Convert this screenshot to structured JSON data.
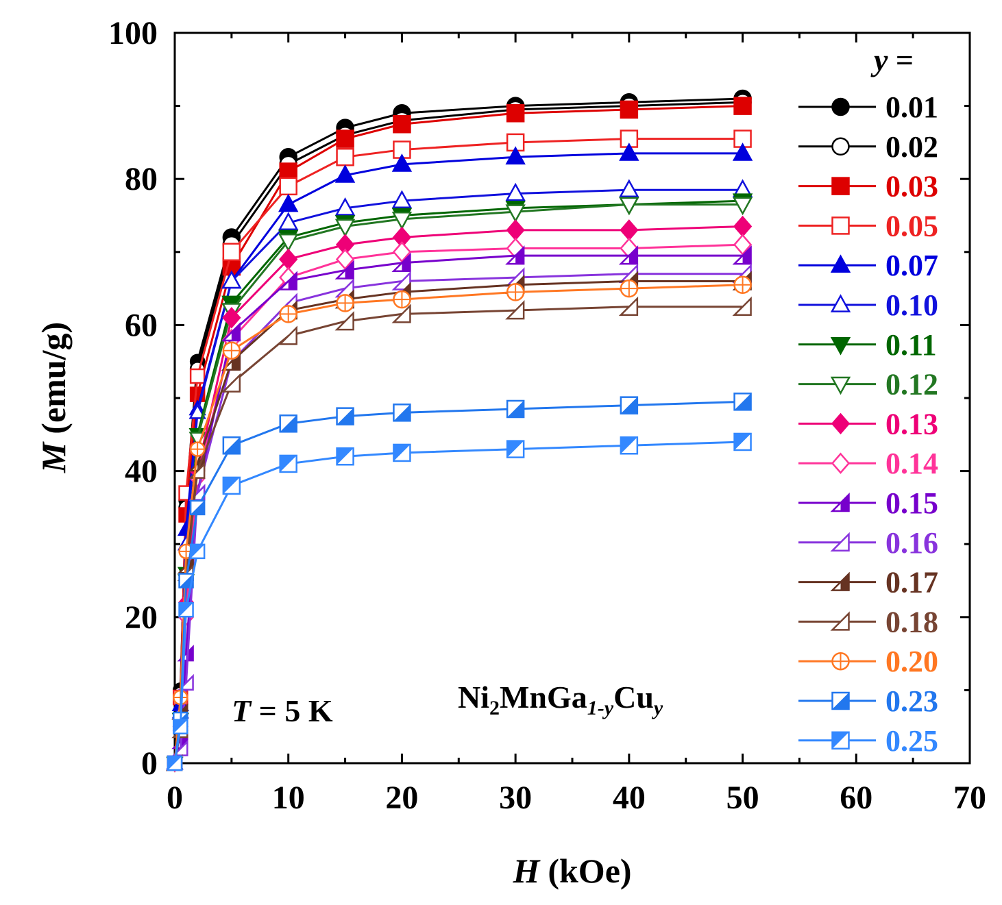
{
  "chart_data": {
    "type": "line",
    "title": "",
    "xlabel": {
      "symbol": "H",
      "unit": "(kOe)"
    },
    "ylabel": {
      "symbol": "M",
      "unit": "(emu/g)"
    },
    "xlim": [
      0,
      70
    ],
    "ylim": [
      0,
      100
    ],
    "xticks": [
      "0",
      "10",
      "20",
      "30",
      "40",
      "50",
      "60",
      "70"
    ],
    "yticks": [
      "0",
      "20",
      "40",
      "60",
      "80",
      "100"
    ],
    "grid": false,
    "legend_title": {
      "symbol": "y",
      "suffix": " ="
    },
    "legend_position": "right",
    "annotation_temperature": {
      "symbol": "T",
      "text": " = 5 K"
    },
    "annotation_formula": {
      "a": "Ni",
      "a_sub": "2",
      "b": "MnGa",
      "b_sub": "1-y",
      "c": "Cu",
      "c_sub": "y"
    },
    "x": [
      0,
      0.5,
      1,
      2,
      5,
      10,
      15,
      20,
      30,
      40,
      50
    ],
    "series": [
      {
        "name": "0.01",
        "color": "#000000",
        "marker": "circle",
        "fill": "full",
        "values": [
          0,
          10,
          36,
          55,
          72,
          83,
          87,
          89,
          90,
          90.5,
          91
        ]
      },
      {
        "name": "0.02",
        "color": "#000000",
        "marker": "circle",
        "fill": "none",
        "values": [
          0,
          9.5,
          35,
          54,
          71,
          82,
          86,
          88,
          89.5,
          90,
          90.5
        ]
      },
      {
        "name": "0.03",
        "color": "#dd0000",
        "marker": "square",
        "fill": "full",
        "values": [
          0,
          9,
          34,
          50.5,
          68,
          81,
          85.5,
          87.5,
          89,
          89.5,
          90
        ]
      },
      {
        "name": "0.05",
        "color": "#ee2222",
        "marker": "square",
        "fill": "none",
        "values": [
          0,
          9,
          37,
          53,
          70,
          79,
          83,
          84,
          85,
          85.5,
          85.5
        ]
      },
      {
        "name": "0.07",
        "color": "#0000dd",
        "marker": "triangle-up",
        "fill": "full",
        "values": [
          0,
          8,
          32,
          48.5,
          66,
          76.5,
          80.5,
          82,
          83,
          83.5,
          83.5
        ]
      },
      {
        "name": "0.10",
        "color": "#1111dd",
        "marker": "triangle-up",
        "fill": "none",
        "values": [
          0,
          7,
          30,
          48,
          66,
          74,
          76,
          77,
          78,
          78.5,
          78.5
        ]
      },
      {
        "name": "0.11",
        "color": "#006600",
        "marker": "triangle-down",
        "fill": "full",
        "values": [
          0,
          6,
          26,
          45,
          63,
          72,
          74,
          75,
          76,
          76.5,
          77
        ]
      },
      {
        "name": "0.12",
        "color": "#227722",
        "marker": "triangle-down",
        "fill": "none",
        "values": [
          0,
          6,
          25,
          44.5,
          62,
          71.5,
          73.5,
          74.5,
          75.5,
          76.5,
          76.5
        ]
      },
      {
        "name": "0.13",
        "color": "#ee0077",
        "marker": "diamond",
        "fill": "full",
        "values": [
          0,
          5,
          22,
          40,
          61,
          69,
          71,
          72,
          73,
          73,
          73.5
        ]
      },
      {
        "name": "0.14",
        "color": "#ff3399",
        "marker": "diamond",
        "fill": "none",
        "values": [
          0,
          4.5,
          20,
          39,
          58,
          66.5,
          69,
          70,
          70.5,
          70.5,
          71
        ]
      },
      {
        "name": "0.15",
        "color": "#7700cc",
        "marker": "triangle-right",
        "fill": "half",
        "values": [
          0,
          3,
          15,
          37,
          59,
          66,
          67.5,
          68.5,
          69.5,
          69.5,
          69.5
        ]
      },
      {
        "name": "0.16",
        "color": "#8833dd",
        "marker": "triangle-right",
        "fill": "none",
        "values": [
          0,
          2,
          11,
          37,
          55,
          63,
          65,
          66,
          66.5,
          67,
          67
        ]
      },
      {
        "name": "0.17",
        "color": "#663322",
        "marker": "triangle-right",
        "fill": "half-dark",
        "values": [
          0,
          7,
          27,
          41,
          55,
          62,
          63.5,
          64.5,
          65.5,
          66,
          66
        ]
      },
      {
        "name": "0.18",
        "color": "#774433",
        "marker": "triangle-right",
        "fill": "none",
        "values": [
          0,
          4.5,
          26,
          40,
          52,
          58.5,
          60.5,
          61.5,
          62,
          62.5,
          62.5
        ]
      },
      {
        "name": "0.20",
        "color": "#ff7722",
        "marker": "circle-plus",
        "fill": "none",
        "values": [
          0,
          9,
          29,
          43,
          56.5,
          61.5,
          63,
          63.5,
          64.5,
          65,
          65.5
        ]
      },
      {
        "name": "0.23",
        "color": "#2277ee",
        "marker": "square",
        "fill": "half",
        "values": [
          0,
          6,
          25,
          35,
          43.5,
          46.5,
          47.5,
          48,
          48.5,
          49,
          49.5
        ]
      },
      {
        "name": "0.25",
        "color": "#3388ff",
        "marker": "square",
        "fill": "half-alt",
        "values": [
          0,
          5,
          21,
          29,
          38,
          41,
          42,
          42.5,
          43,
          43.5,
          44
        ]
      }
    ]
  }
}
